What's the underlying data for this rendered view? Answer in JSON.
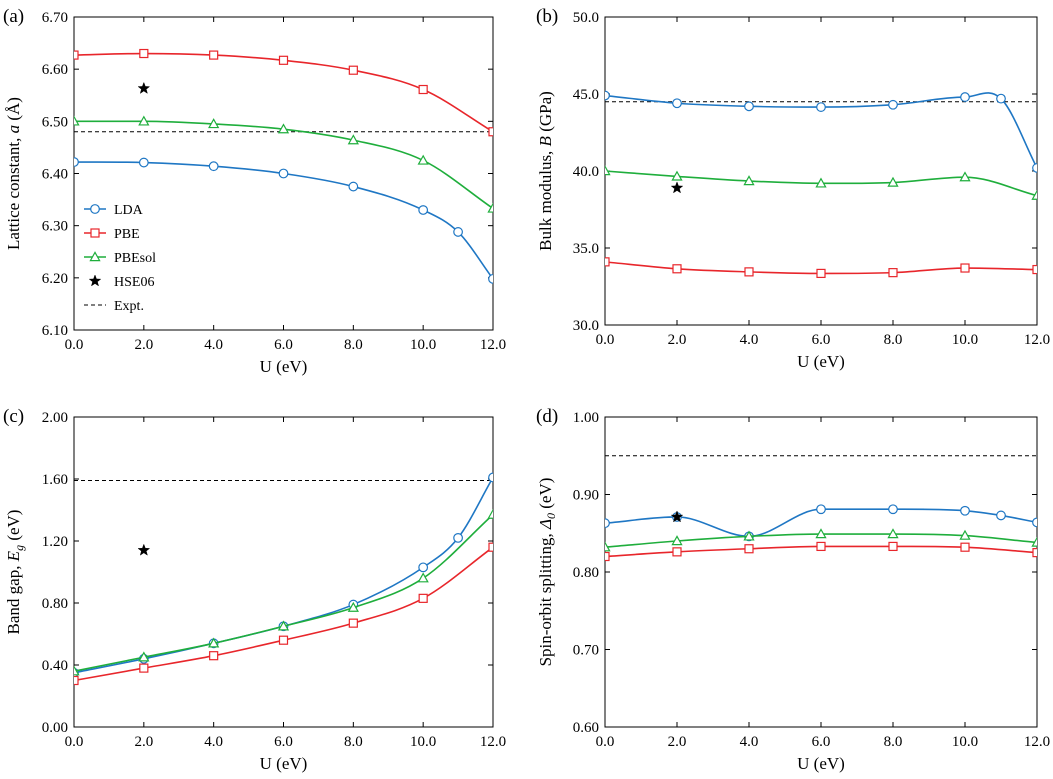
{
  "colors": {
    "LDA": "#1f77c4",
    "PBE": "#e8262b",
    "PBEsol": "#1fae3c",
    "HSE06": "#000000",
    "Expt.": "#000000"
  },
  "markers": {
    "LDA": "circle",
    "PBE": "square",
    "PBEsol": "triangle",
    "HSE06": "star",
    "Expt.": "dash"
  },
  "legend": {
    "placement": "lower-left of panel (a)",
    "entries": [
      "LDA",
      "PBE",
      "PBEsol",
      "HSE06",
      "Expt."
    ]
  },
  "chart_data": [
    {
      "panel": "(a)",
      "type": "line",
      "xlabel": "U (eV)",
      "ylabel": "Lattice constant, a (Å)",
      "xlim": [
        0,
        12
      ],
      "ylim": [
        6.1,
        6.7
      ],
      "xticks": [
        "0.0",
        "2.0",
        "4.0",
        "6.0",
        "8.0",
        "10.0",
        "12.0"
      ],
      "yticks": [
        "6.10",
        "6.20",
        "6.30",
        "6.40",
        "6.50",
        "6.60",
        "6.70"
      ],
      "series": [
        {
          "name": "LDA",
          "x": [
            0,
            2,
            4,
            6,
            8,
            10,
            11,
            12
          ],
          "values": [
            6.422,
            6.421,
            6.414,
            6.4,
            6.375,
            6.33,
            6.288,
            6.198
          ]
        },
        {
          "name": "PBE",
          "x": [
            0,
            2,
            4,
            6,
            8,
            10,
            12
          ],
          "values": [
            6.627,
            6.63,
            6.627,
            6.617,
            6.598,
            6.561,
            6.48
          ]
        },
        {
          "name": "PBEsol",
          "x": [
            0,
            2,
            4,
            6,
            8,
            10,
            12
          ],
          "values": [
            6.5,
            6.5,
            6.495,
            6.485,
            6.464,
            6.425,
            6.333
          ]
        }
      ],
      "hse06": {
        "x": 2,
        "value": 6.563
      },
      "expt": 6.48
    },
    {
      "panel": "(b)",
      "type": "line",
      "xlabel": "U (eV)",
      "ylabel": "Bulk modulus, B (GPa)",
      "xlim": [
        0,
        12
      ],
      "ylim": [
        30,
        50
      ],
      "xticks": [
        "0.0",
        "2.0",
        "4.0",
        "6.0",
        "8.0",
        "10.0",
        "12.0"
      ],
      "yticks": [
        "30.0",
        "35.0",
        "40.0",
        "45.0",
        "50.0"
      ],
      "series": [
        {
          "name": "LDA",
          "x": [
            0,
            2,
            4,
            6,
            8,
            10,
            11,
            12
          ],
          "values": [
            44.9,
            44.4,
            44.2,
            44.15,
            44.3,
            44.8,
            44.7,
            40.2
          ]
        },
        {
          "name": "PBE",
          "x": [
            0,
            2,
            4,
            6,
            8,
            10,
            12
          ],
          "values": [
            34.1,
            33.65,
            33.45,
            33.35,
            33.4,
            33.7,
            33.6
          ]
        },
        {
          "name": "PBEsol",
          "x": [
            0,
            2,
            4,
            6,
            8,
            10,
            12
          ],
          "values": [
            40.0,
            39.65,
            39.35,
            39.2,
            39.25,
            39.6,
            38.4
          ]
        }
      ],
      "hse06": {
        "x": 2,
        "value": 38.9
      },
      "expt": 44.5
    },
    {
      "panel": "(c)",
      "type": "line",
      "xlabel": "U (eV)",
      "ylabel": "Band gap, Eg (eV)",
      "xlim": [
        0,
        12
      ],
      "ylim": [
        0,
        2
      ],
      "xticks": [
        "0.0",
        "2.0",
        "4.0",
        "6.0",
        "8.0",
        "10.0",
        "12.0"
      ],
      "yticks": [
        "0.00",
        "0.40",
        "0.80",
        "1.20",
        "1.60",
        "2.00"
      ],
      "series": [
        {
          "name": "LDA",
          "x": [
            0,
            2,
            4,
            6,
            8,
            10,
            11,
            12
          ],
          "values": [
            0.35,
            0.44,
            0.54,
            0.65,
            0.79,
            1.03,
            1.22,
            1.61
          ]
        },
        {
          "name": "PBE",
          "x": [
            0,
            2,
            4,
            6,
            8,
            10,
            12
          ],
          "values": [
            0.3,
            0.38,
            0.46,
            0.56,
            0.67,
            0.83,
            1.16
          ]
        },
        {
          "name": "PBEsol",
          "x": [
            0,
            2,
            4,
            6,
            8,
            10,
            12
          ],
          "values": [
            0.36,
            0.45,
            0.54,
            0.65,
            0.77,
            0.96,
            1.37
          ]
        }
      ],
      "hse06": {
        "x": 2,
        "value": 1.14
      },
      "expt": 1.59
    },
    {
      "panel": "(d)",
      "type": "line",
      "xlabel": "U (eV)",
      "ylabel": "Spin-orbit splitting, Δ0 (eV)",
      "xlim": [
        0,
        12
      ],
      "ylim": [
        0.6,
        1.0
      ],
      "xticks": [
        "0.0",
        "2.0",
        "4.0",
        "6.0",
        "8.0",
        "10.0",
        "12.0"
      ],
      "yticks": [
        "0.60",
        "0.70",
        "0.80",
        "0.90",
        "1.00"
      ],
      "series": [
        {
          "name": "LDA",
          "x": [
            0,
            2,
            4,
            6,
            8,
            10,
            11,
            12
          ],
          "values": [
            0.863,
            0.871,
            0.846,
            0.881,
            0.881,
            0.879,
            0.873,
            0.864
          ]
        },
        {
          "name": "PBE",
          "x": [
            0,
            2,
            4,
            6,
            8,
            10,
            12
          ],
          "values": [
            0.82,
            0.826,
            0.83,
            0.833,
            0.833,
            0.832,
            0.825
          ]
        },
        {
          "name": "PBEsol",
          "x": [
            0,
            2,
            4,
            6,
            8,
            10,
            12
          ],
          "values": [
            0.832,
            0.84,
            0.846,
            0.849,
            0.849,
            0.847,
            0.838
          ]
        }
      ],
      "hse06": {
        "x": 2,
        "value": 0.871
      },
      "expt": 0.95
    }
  ]
}
